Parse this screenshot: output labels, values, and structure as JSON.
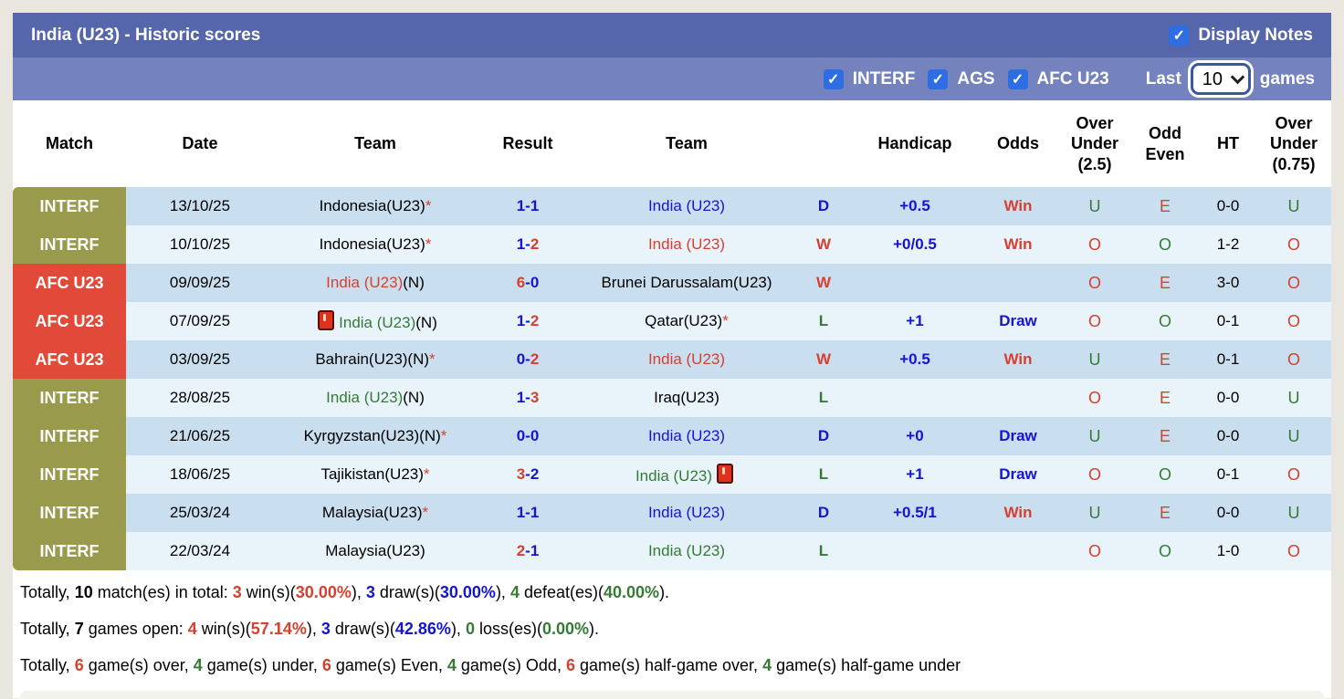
{
  "header": {
    "title": "India (U23) - Historic scores",
    "display_notes_label": "Display Notes",
    "display_notes_checked": true
  },
  "filters": {
    "checkboxes": [
      {
        "label": "INTERF",
        "checked": true
      },
      {
        "label": "AGS",
        "checked": true
      },
      {
        "label": "AFC U23",
        "checked": true
      }
    ],
    "last_label": "Last",
    "games_value": "10",
    "games_label": "games"
  },
  "colors": {
    "title_bar": "#5566ab",
    "filter_bar": "#7482bd",
    "checkbox_blue": "#2e6de2",
    "interf_label": "#9a9a4d",
    "afc_label": "#e14a39",
    "row_dark": "#c9dff0",
    "row_light": "#e9f3fa",
    "text_blue": "#1414d2",
    "text_red": "#d6402e",
    "text_green": "#357a35"
  },
  "table": {
    "columns": [
      "Match",
      "Date",
      "Team",
      "Result",
      "Team",
      "",
      "Handicap",
      "Odds",
      "Over\nUnder\n(2.5)",
      "Odd\nEven",
      "HT",
      "Over\nUnder\n(0.75)"
    ],
    "rows": [
      {
        "comp": "INTERF",
        "type": "interf",
        "date": "13/10/25",
        "home": [
          {
            "t": "Indonesia(U23)",
            "c": "k"
          },
          {
            "t": "*",
            "c": "r"
          }
        ],
        "score": [
          {
            "t": "1-1",
            "c": "b"
          }
        ],
        "away": [
          {
            "t": "India (U23)",
            "c": "b"
          }
        ],
        "wdl": [
          {
            "t": "D",
            "c": "b"
          }
        ],
        "handicap": "+0.5",
        "odds": [
          {
            "t": "Win",
            "c": "r"
          }
        ],
        "ou25": [
          {
            "t": "U",
            "c": "g"
          }
        ],
        "oe": [
          {
            "t": "E",
            "c": "r"
          }
        ],
        "ht": "0-0",
        "ou075": [
          {
            "t": "U",
            "c": "g"
          }
        ]
      },
      {
        "comp": "INTERF",
        "type": "interf",
        "date": "10/10/25",
        "home": [
          {
            "t": "Indonesia(U23)",
            "c": "k"
          },
          {
            "t": "*",
            "c": "r"
          }
        ],
        "score": [
          {
            "t": "1-",
            "c": "b"
          },
          {
            "t": "2",
            "c": "r"
          }
        ],
        "away": [
          {
            "t": "India (U23)",
            "c": "r"
          }
        ],
        "wdl": [
          {
            "t": "W",
            "c": "r"
          }
        ],
        "handicap": "+0/0.5",
        "odds": [
          {
            "t": "Win",
            "c": "r"
          }
        ],
        "ou25": [
          {
            "t": "O",
            "c": "r"
          }
        ],
        "oe": [
          {
            "t": "O",
            "c": "g"
          }
        ],
        "ht": "1-2",
        "ou075": [
          {
            "t": "O",
            "c": "r"
          }
        ]
      },
      {
        "comp": "AFC U23",
        "type": "afc",
        "date": "09/09/25",
        "home": [
          {
            "t": "India (U23)",
            "c": "r"
          },
          {
            "t": "(N)",
            "c": "k"
          }
        ],
        "score": [
          {
            "t": "6",
            "c": "r"
          },
          {
            "t": "-0",
            "c": "b"
          }
        ],
        "away": [
          {
            "t": "Brunei Darussalam(U23)",
            "c": "k"
          }
        ],
        "wdl": [
          {
            "t": "W",
            "c": "r"
          }
        ],
        "handicap": "",
        "odds": [],
        "ou25": [
          {
            "t": "O",
            "c": "r"
          }
        ],
        "oe": [
          {
            "t": "E",
            "c": "r"
          }
        ],
        "ht": "3-0",
        "ou075": [
          {
            "t": "O",
            "c": "r"
          }
        ]
      },
      {
        "comp": "AFC U23",
        "type": "afc",
        "date": "07/09/25",
        "home": [
          {
            "icon": "red-card"
          },
          {
            "t": "India (U23)",
            "c": "g"
          },
          {
            "t": "(N)",
            "c": "k"
          }
        ],
        "score": [
          {
            "t": "1-",
            "c": "b"
          },
          {
            "t": "2",
            "c": "r"
          }
        ],
        "away": [
          {
            "t": "Qatar(U23)",
            "c": "k"
          },
          {
            "t": "*",
            "c": "r"
          }
        ],
        "wdl": [
          {
            "t": "L",
            "c": "g"
          }
        ],
        "handicap": "+1",
        "odds": [
          {
            "t": "Draw",
            "c": "b"
          }
        ],
        "ou25": [
          {
            "t": "O",
            "c": "r"
          }
        ],
        "oe": [
          {
            "t": "O",
            "c": "g"
          }
        ],
        "ht": "0-1",
        "ou075": [
          {
            "t": "O",
            "c": "r"
          }
        ]
      },
      {
        "comp": "AFC U23",
        "type": "afc",
        "date": "03/09/25",
        "home": [
          {
            "t": "Bahrain(U23)(N)",
            "c": "k"
          },
          {
            "t": "*",
            "c": "r"
          }
        ],
        "score": [
          {
            "t": "0-",
            "c": "b"
          },
          {
            "t": "2",
            "c": "r"
          }
        ],
        "away": [
          {
            "t": "India (U23)",
            "c": "r"
          }
        ],
        "wdl": [
          {
            "t": "W",
            "c": "r"
          }
        ],
        "handicap": "+0.5",
        "odds": [
          {
            "t": "Win",
            "c": "r"
          }
        ],
        "ou25": [
          {
            "t": "U",
            "c": "g"
          }
        ],
        "oe": [
          {
            "t": "E",
            "c": "r"
          }
        ],
        "ht": "0-1",
        "ou075": [
          {
            "t": "O",
            "c": "r"
          }
        ]
      },
      {
        "comp": "INTERF",
        "type": "interf",
        "date": "28/08/25",
        "home": [
          {
            "t": "India (U23)",
            "c": "g"
          },
          {
            "t": "(N)",
            "c": "k"
          }
        ],
        "score": [
          {
            "t": "1-",
            "c": "b"
          },
          {
            "t": "3",
            "c": "r"
          }
        ],
        "away": [
          {
            "t": "Iraq(U23)",
            "c": "k"
          }
        ],
        "wdl": [
          {
            "t": "L",
            "c": "g"
          }
        ],
        "handicap": "",
        "odds": [],
        "ou25": [
          {
            "t": "O",
            "c": "r"
          }
        ],
        "oe": [
          {
            "t": "E",
            "c": "r"
          }
        ],
        "ht": "0-0",
        "ou075": [
          {
            "t": "U",
            "c": "g"
          }
        ]
      },
      {
        "comp": "INTERF",
        "type": "interf",
        "date": "21/06/25",
        "home": [
          {
            "t": "Kyrgyzstan(U23)(N)",
            "c": "k"
          },
          {
            "t": "*",
            "c": "r"
          }
        ],
        "score": [
          {
            "t": "0-0",
            "c": "b"
          }
        ],
        "away": [
          {
            "t": "India (U23)",
            "c": "b"
          }
        ],
        "wdl": [
          {
            "t": "D",
            "c": "b"
          }
        ],
        "handicap": "+0",
        "odds": [
          {
            "t": "Draw",
            "c": "b"
          }
        ],
        "ou25": [
          {
            "t": "U",
            "c": "g"
          }
        ],
        "oe": [
          {
            "t": "E",
            "c": "r"
          }
        ],
        "ht": "0-0",
        "ou075": [
          {
            "t": "U",
            "c": "g"
          }
        ]
      },
      {
        "comp": "INTERF",
        "type": "interf",
        "date": "18/06/25",
        "home": [
          {
            "t": "Tajikistan(U23)",
            "c": "k"
          },
          {
            "t": "*",
            "c": "r"
          }
        ],
        "score": [
          {
            "t": "3",
            "c": "r"
          },
          {
            "t": "-2",
            "c": "b"
          }
        ],
        "away": [
          {
            "t": "India (U23)",
            "c": "g"
          },
          {
            "icon": "red-card"
          }
        ],
        "wdl": [
          {
            "t": "L",
            "c": "g"
          }
        ],
        "handicap": "+1",
        "odds": [
          {
            "t": "Draw",
            "c": "b"
          }
        ],
        "ou25": [
          {
            "t": "O",
            "c": "r"
          }
        ],
        "oe": [
          {
            "t": "O",
            "c": "g"
          }
        ],
        "ht": "0-1",
        "ou075": [
          {
            "t": "O",
            "c": "r"
          }
        ]
      },
      {
        "comp": "INTERF",
        "type": "interf",
        "date": "25/03/24",
        "home": [
          {
            "t": "Malaysia(U23)",
            "c": "k"
          },
          {
            "t": "*",
            "c": "r"
          }
        ],
        "score": [
          {
            "t": "1-1",
            "c": "b"
          }
        ],
        "away": [
          {
            "t": "India (U23)",
            "c": "b"
          }
        ],
        "wdl": [
          {
            "t": "D",
            "c": "b"
          }
        ],
        "handicap": "+0.5/1",
        "odds": [
          {
            "t": "Win",
            "c": "r"
          }
        ],
        "ou25": [
          {
            "t": "U",
            "c": "g"
          }
        ],
        "oe": [
          {
            "t": "E",
            "c": "r"
          }
        ],
        "ht": "0-0",
        "ou075": [
          {
            "t": "U",
            "c": "g"
          }
        ]
      },
      {
        "comp": "INTERF",
        "type": "interf",
        "date": "22/03/24",
        "home": [
          {
            "t": "Malaysia(U23)",
            "c": "k"
          }
        ],
        "score": [
          {
            "t": "2",
            "c": "r"
          },
          {
            "t": "-1",
            "c": "b"
          }
        ],
        "away": [
          {
            "t": "India (U23)",
            "c": "g"
          }
        ],
        "wdl": [
          {
            "t": "L",
            "c": "g"
          }
        ],
        "handicap": "",
        "odds": [],
        "ou25": [
          {
            "t": "O",
            "c": "r"
          }
        ],
        "oe": [
          {
            "t": "O",
            "c": "g"
          }
        ],
        "ht": "1-0",
        "ou075": [
          {
            "t": "O",
            "c": "r"
          }
        ]
      }
    ]
  },
  "summary": {
    "lines": [
      [
        {
          "t": "Totally, ",
          "c": "k"
        },
        {
          "t": "10",
          "c": "kb"
        },
        {
          "t": " match(es) in total: ",
          "c": "k"
        },
        {
          "t": "3",
          "c": "rb"
        },
        {
          "t": " win(s)(",
          "c": "k"
        },
        {
          "t": "30.00%",
          "c": "rb"
        },
        {
          "t": "), ",
          "c": "k"
        },
        {
          "t": "3",
          "c": "bb"
        },
        {
          "t": " draw(s)(",
          "c": "k"
        },
        {
          "t": "30.00%",
          "c": "bb"
        },
        {
          "t": "), ",
          "c": "k"
        },
        {
          "t": "4",
          "c": "gb"
        },
        {
          "t": " defeat(es)(",
          "c": "k"
        },
        {
          "t": "40.00%",
          "c": "gb"
        },
        {
          "t": ").",
          "c": "k"
        }
      ],
      [
        {
          "t": "Totally, ",
          "c": "k"
        },
        {
          "t": "7",
          "c": "kb"
        },
        {
          "t": " games open: ",
          "c": "k"
        },
        {
          "t": "4",
          "c": "rb"
        },
        {
          "t": " win(s)(",
          "c": "k"
        },
        {
          "t": "57.14%",
          "c": "rb"
        },
        {
          "t": "), ",
          "c": "k"
        },
        {
          "t": "3",
          "c": "bb"
        },
        {
          "t": " draw(s)(",
          "c": "k"
        },
        {
          "t": "42.86%",
          "c": "bb"
        },
        {
          "t": "), ",
          "c": "k"
        },
        {
          "t": "0",
          "c": "gb"
        },
        {
          "t": " loss(es)(",
          "c": "k"
        },
        {
          "t": "0.00%",
          "c": "gb"
        },
        {
          "t": ").",
          "c": "k"
        }
      ],
      [
        {
          "t": "Totally, ",
          "c": "k"
        },
        {
          "t": "6",
          "c": "rb"
        },
        {
          "t": " game(s) over, ",
          "c": "k"
        },
        {
          "t": "4",
          "c": "gb"
        },
        {
          "t": " game(s) under, ",
          "c": "k"
        },
        {
          "t": "6",
          "c": "rb"
        },
        {
          "t": " game(s) Even, ",
          "c": "k"
        },
        {
          "t": "4",
          "c": "gb"
        },
        {
          "t": " game(s) Odd, ",
          "c": "k"
        },
        {
          "t": "6",
          "c": "rb"
        },
        {
          "t": " game(s) half-game over, ",
          "c": "k"
        },
        {
          "t": "4",
          "c": "gb"
        },
        {
          "t": " game(s) half-game under",
          "c": "k"
        }
      ]
    ]
  }
}
